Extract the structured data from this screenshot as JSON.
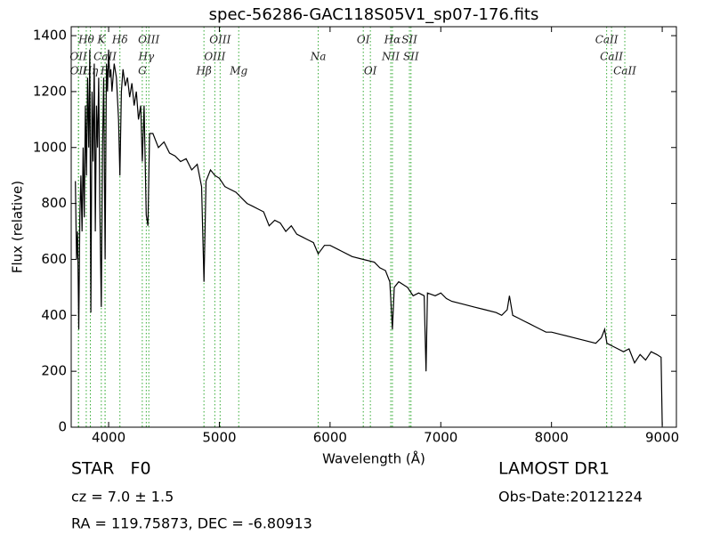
{
  "chart_data": {
    "type": "line",
    "title": "spec-56286-GAC118S05V1_sp07-176.fits",
    "xlabel": "Wavelength (Å)",
    "ylabel": "Flux (relative)",
    "color": "#000000",
    "line_color": "#33aa33",
    "xlim": [
      3662,
      9128
    ],
    "ylim": [
      0,
      1432
    ],
    "xticks": [
      4000,
      5000,
      6000,
      7000,
      8000,
      9000
    ],
    "yticks": [
      0,
      200,
      400,
      600,
      800,
      1000,
      1200,
      1400
    ],
    "x": [
      3700,
      3710,
      3720,
      3730,
      3740,
      3750,
      3760,
      3770,
      3780,
      3790,
      3800,
      3810,
      3820,
      3830,
      3840,
      3850,
      3860,
      3870,
      3880,
      3890,
      3900,
      3910,
      3920,
      3934,
      3945,
      3955,
      3968,
      3980,
      3990,
      4000,
      4010,
      4020,
      4030,
      4050,
      4070,
      4090,
      4102,
      4115,
      4130,
      4150,
      4170,
      4190,
      4210,
      4230,
      4250,
      4270,
      4290,
      4304,
      4320,
      4340,
      4355,
      4370,
      4400,
      4450,
      4500,
      4550,
      4600,
      4650,
      4700,
      4750,
      4800,
      4840,
      4861,
      4880,
      4920,
      4960,
      5000,
      5050,
      5100,
      5150,
      5200,
      5250,
      5300,
      5350,
      5400,
      5450,
      5500,
      5550,
      5600,
      5650,
      5700,
      5750,
      5800,
      5850,
      5893,
      5950,
      6000,
      6100,
      6200,
      6300,
      6400,
      6450,
      6500,
      6540,
      6563,
      6580,
      6620,
      6700,
      6750,
      6800,
      6850,
      6867,
      6880,
      6950,
      7000,
      7050,
      7100,
      7200,
      7300,
      7400,
      7500,
      7550,
      7600,
      7620,
      7650,
      7700,
      7750,
      7800,
      7850,
      7900,
      7950,
      8000,
      8100,
      8200,
      8300,
      8400,
      8450,
      8480,
      8500,
      8550,
      8600,
      8650,
      8700,
      8750,
      8800,
      8850,
      8900,
      8950,
      8990,
      9000
    ],
    "values": [
      880,
      600,
      700,
      350,
      750,
      900,
      700,
      1000,
      750,
      1150,
      900,
      1250,
      1000,
      1350,
      410,
      1200,
      950,
      1300,
      700,
      1150,
      1000,
      1250,
      800,
      430,
      1000,
      1250,
      600,
      1300,
      1200,
      1350,
      1250,
      1280,
      1200,
      1300,
      1250,
      1100,
      900,
      1200,
      1280,
      1220,
      1250,
      1180,
      1230,
      1150,
      1200,
      1100,
      1150,
      950,
      1150,
      760,
      720,
      1050,
      1050,
      1000,
      1020,
      980,
      970,
      950,
      960,
      920,
      940,
      860,
      520,
      880,
      920,
      900,
      890,
      860,
      850,
      840,
      820,
      800,
      790,
      780,
      770,
      720,
      740,
      730,
      700,
      720,
      690,
      680,
      670,
      660,
      620,
      650,
      650,
      630,
      610,
      600,
      590,
      570,
      560,
      520,
      350,
      500,
      520,
      500,
      470,
      480,
      470,
      200,
      480,
      470,
      480,
      460,
      450,
      440,
      430,
      420,
      410,
      400,
      420,
      470,
      400,
      390,
      380,
      370,
      360,
      350,
      340,
      340,
      330,
      320,
      310,
      300,
      320,
      350,
      300,
      290,
      280,
      270,
      280,
      230,
      260,
      240,
      270,
      260,
      250,
      5
    ],
    "lines": [
      {
        "label": "Hθ",
        "x": 3798
      },
      {
        "label": "OII",
        "x": 3727
      },
      {
        "label": "OII",
        "x": 3729
      },
      {
        "label": "K",
        "x": 3934
      },
      {
        "label": "CaII",
        "x": 3968
      },
      {
        "label": "Hη",
        "x": 3835
      },
      {
        "label": "Hδ",
        "x": 4102
      },
      {
        "label": "Hγ",
        "x": 4340
      },
      {
        "label": "H",
        "x": 3968
      },
      {
        "label": "OIII",
        "x": 4363
      },
      {
        "label": "OIII",
        "x": 4959
      },
      {
        "label": "G",
        "x": 4304
      },
      {
        "label": "OIII",
        "x": 5007
      },
      {
        "label": "Na",
        "x": 5893
      },
      {
        "label": "Hβ",
        "x": 4861
      },
      {
        "label": "OI",
        "x": 6300
      },
      {
        "label": "NII",
        "x": 6548
      },
      {
        "label": "Mg",
        "x": 5175
      },
      {
        "label": "Hα",
        "x": 6563
      },
      {
        "label": "SII",
        "x": 6731
      },
      {
        "label": "CaII",
        "x": 8662
      },
      {
        "label": "SII",
        "x": 6717
      },
      {
        "label": "CaII",
        "x": 8542
      },
      {
        "label": "OI",
        "x": 6364
      },
      {
        "label": "CaII",
        "x": 8498
      }
    ],
    "object_class": "STAR   F0",
    "redshift": "cz = 7.0 ± 1.5",
    "coords": "RA = 119.75873, DEC = -6.80913",
    "release": "LAMOST DR1",
    "obs_date": "Obs-Date:20121224"
  }
}
